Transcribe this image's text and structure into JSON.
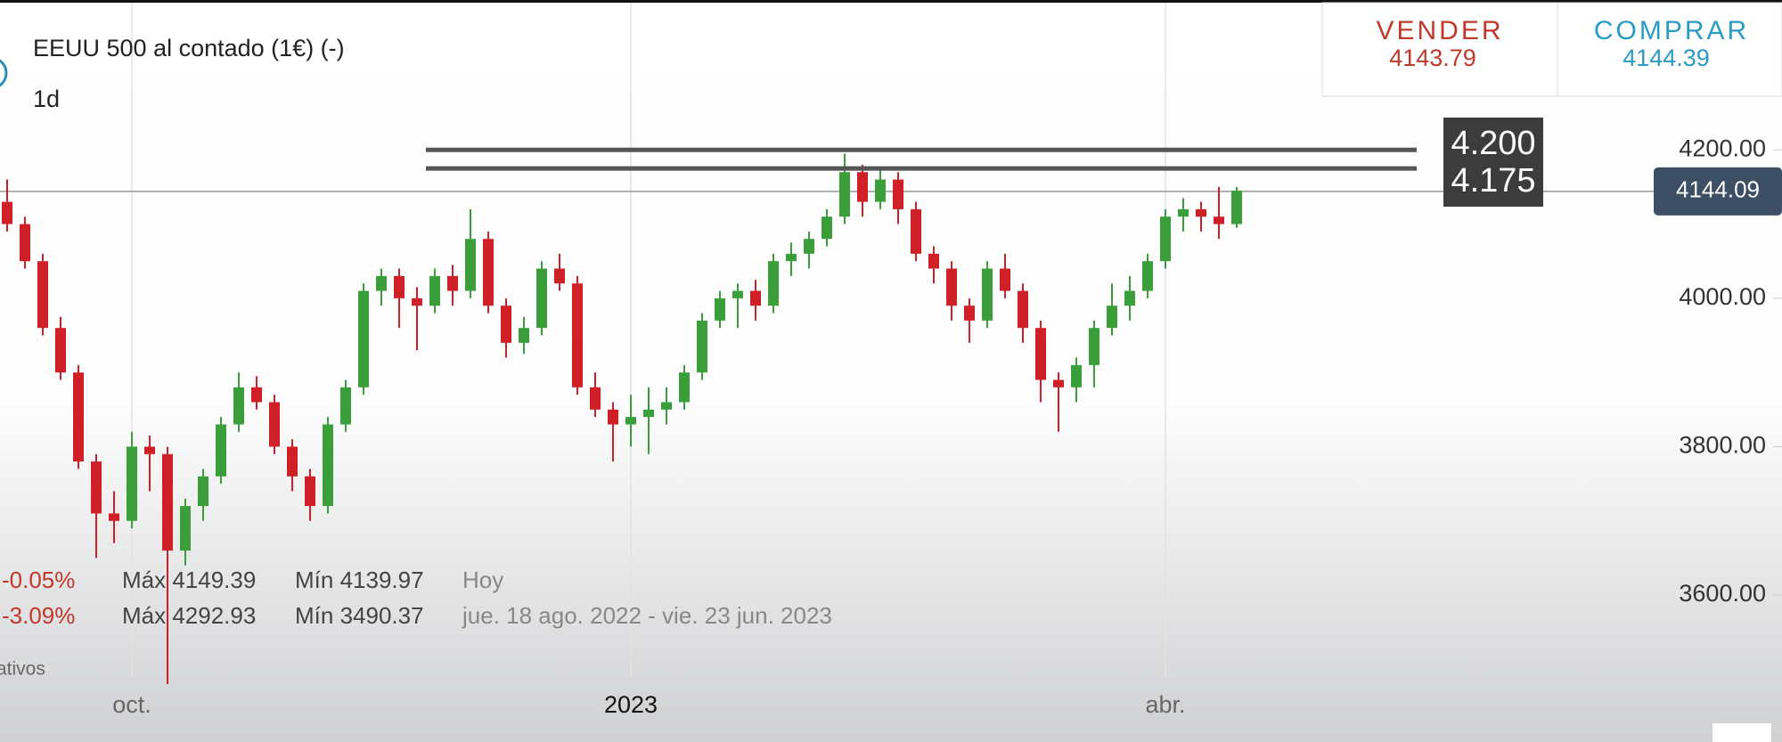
{
  "header": {
    "title": "EEUU 500 al contado (1€) (-)",
    "interval": "1d"
  },
  "quote": {
    "sell_label": "VENDER",
    "sell": "4143.79",
    "buy_label": "COMPRAR",
    "buy": "4144.39"
  },
  "stats": [
    {
      "change": "-0.05%",
      "max": "Máx 4149.39",
      "min": "Mín 4139.97",
      "period": "Hoy"
    },
    {
      "change": "-3.09%",
      "max": "Máx 4292.93",
      "min": "Mín 3490.37",
      "period": "jue. 18 ago. 2022 - vie. 23 jun. 2023"
    }
  ],
  "footnote": "ativos",
  "chart_data": {
    "type": "candlestick",
    "categories": [
      null,
      null,
      null,
      null,
      null,
      null,
      null,
      "oct.",
      null,
      null,
      null,
      null,
      null,
      null,
      null,
      null,
      null,
      null,
      null,
      null,
      null,
      null,
      null,
      null,
      null,
      null,
      null,
      null,
      null,
      null,
      null,
      null,
      null,
      null,
      null,
      "2023",
      null,
      null,
      null,
      null,
      null,
      null,
      null,
      null,
      null,
      null,
      null,
      null,
      null,
      null,
      null,
      null,
      null,
      null,
      null,
      null,
      null,
      null,
      null,
      null,
      null,
      null,
      null,
      null,
      null,
      "abr.",
      null,
      null,
      null,
      null
    ],
    "open": [
      4130,
      4100,
      4050,
      3960,
      3900,
      3780,
      3710,
      3700,
      3800,
      3790,
      3660,
      3720,
      3760,
      3830,
      3880,
      3860,
      3800,
      3760,
      3720,
      3830,
      3880,
      4010,
      4030,
      4000,
      3990,
      4030,
      4010,
      4080,
      3990,
      3940,
      3960,
      4040,
      4020,
      3880,
      3850,
      3830,
      3840,
      3850,
      3860,
      3900,
      3970,
      4000,
      4010,
      3990,
      4050,
      4060,
      4080,
      4110,
      4170,
      4130,
      4160,
      4120,
      4060,
      4040,
      3990,
      3970,
      4040,
      4010,
      3960,
      3890,
      3880,
      3910,
      3960,
      3990,
      4010,
      4050,
      4110,
      4120,
      4110,
      4100
    ],
    "high": [
      4160,
      4110,
      4060,
      3975,
      3910,
      3790,
      3740,
      3820,
      3815,
      3800,
      3730,
      3770,
      3840,
      3900,
      3895,
      3870,
      3810,
      3770,
      3840,
      3890,
      4020,
      4040,
      4040,
      4015,
      4040,
      4045,
      4120,
      4090,
      4000,
      3975,
      4050,
      4060,
      4030,
      3900,
      3860,
      3870,
      3880,
      3880,
      3910,
      3980,
      4010,
      4020,
      4025,
      4060,
      4075,
      4090,
      4120,
      4195,
      4180,
      4175,
      4170,
      4130,
      4070,
      4050,
      4000,
      4050,
      4060,
      4020,
      3970,
      3900,
      3920,
      3970,
      4020,
      4030,
      4060,
      4120,
      4135,
      4130,
      4150,
      4150
    ],
    "low": [
      4090,
      4040,
      3950,
      3890,
      3770,
      3650,
      3670,
      3690,
      3740,
      3480,
      3640,
      3700,
      3750,
      3820,
      3850,
      3790,
      3740,
      3700,
      3710,
      3820,
      3870,
      3990,
      3960,
      3930,
      3980,
      3990,
      4000,
      3980,
      3920,
      3925,
      3950,
      4010,
      3870,
      3840,
      3780,
      3800,
      3790,
      3830,
      3850,
      3890,
      3960,
      3960,
      3970,
      3980,
      4030,
      4040,
      4070,
      4100,
      4110,
      4120,
      4100,
      4050,
      4020,
      3970,
      3940,
      3960,
      4000,
      3940,
      3860,
      3820,
      3860,
      3880,
      3950,
      3970,
      4000,
      4040,
      4090,
      4090,
      4080,
      4095
    ],
    "close": [
      4100,
      4050,
      3960,
      3900,
      3780,
      3710,
      3700,
      3800,
      3790,
      3660,
      3720,
      3760,
      3830,
      3880,
      3860,
      3800,
      3760,
      3720,
      3830,
      3880,
      4010,
      4030,
      4000,
      3990,
      4030,
      4010,
      4080,
      3990,
      3940,
      3960,
      4040,
      4020,
      3880,
      3850,
      3830,
      3840,
      3850,
      3860,
      3900,
      3970,
      4000,
      4010,
      3990,
      4050,
      4060,
      4080,
      4110,
      4170,
      4130,
      4160,
      4120,
      4060,
      4040,
      3990,
      3970,
      4040,
      4010,
      3960,
      3890,
      3880,
      3910,
      3960,
      3990,
      4010,
      4050,
      4110,
      4120,
      4110,
      4100,
      4145
    ],
    "up_color": "#3a9f3a",
    "down_color": "#cf2027",
    "ylim": [
      3402,
      4402
    ],
    "yticks": [
      {
        "value": 4200,
        "label": "4200.00"
      },
      {
        "value": 4000,
        "label": "4000.00"
      },
      {
        "value": 3800,
        "label": "3800.00"
      },
      {
        "value": 3600,
        "label": "3600.00"
      }
    ],
    "levels": [
      {
        "value": 4200,
        "label": "4.200"
      },
      {
        "value": 4175,
        "label": "4.175"
      }
    ],
    "last_price": 4144.09,
    "grid": true
  }
}
